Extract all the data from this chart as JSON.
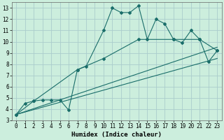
{
  "title": "",
  "xlabel": "Humidex (Indice chaleur)",
  "ylabel": "",
  "background_color": "#cceedd",
  "grid_color": "#aacccc",
  "line_color": "#1a6e6a",
  "xlim": [
    -0.5,
    23.5
  ],
  "ylim": [
    3,
    13.5
  ],
  "xticks": [
    0,
    1,
    2,
    3,
    4,
    5,
    6,
    7,
    8,
    9,
    10,
    11,
    12,
    13,
    14,
    15,
    16,
    17,
    18,
    19,
    20,
    21,
    22,
    23
  ],
  "yticks": [
    3,
    4,
    5,
    6,
    7,
    8,
    9,
    10,
    11,
    12,
    13
  ],
  "lines": [
    {
      "x": [
        0,
        1,
        2,
        3,
        4,
        5,
        6,
        7,
        8,
        10,
        11,
        12,
        13,
        14,
        15,
        16,
        17,
        18,
        19,
        20,
        21,
        22,
        23
      ],
      "y": [
        3.5,
        4.5,
        4.7,
        4.8,
        4.8,
        4.8,
        3.9,
        7.5,
        7.8,
        11.0,
        13.0,
        12.6,
        12.6,
        13.2,
        10.2,
        12.0,
        11.6,
        10.2,
        9.9,
        11.0,
        10.2,
        8.2,
        9.2
      ],
      "has_markers": true
    },
    {
      "x": [
        0,
        2,
        7,
        10,
        14,
        18,
        21,
        23
      ],
      "y": [
        3.5,
        4.7,
        7.5,
        8.5,
        10.2,
        10.2,
        10.2,
        9.2
      ],
      "has_markers": true
    },
    {
      "x": [
        0,
        23
      ],
      "y": [
        3.5,
        9.5
      ],
      "has_markers": false
    },
    {
      "x": [
        0,
        23
      ],
      "y": [
        3.5,
        8.5
      ],
      "has_markers": false
    }
  ]
}
